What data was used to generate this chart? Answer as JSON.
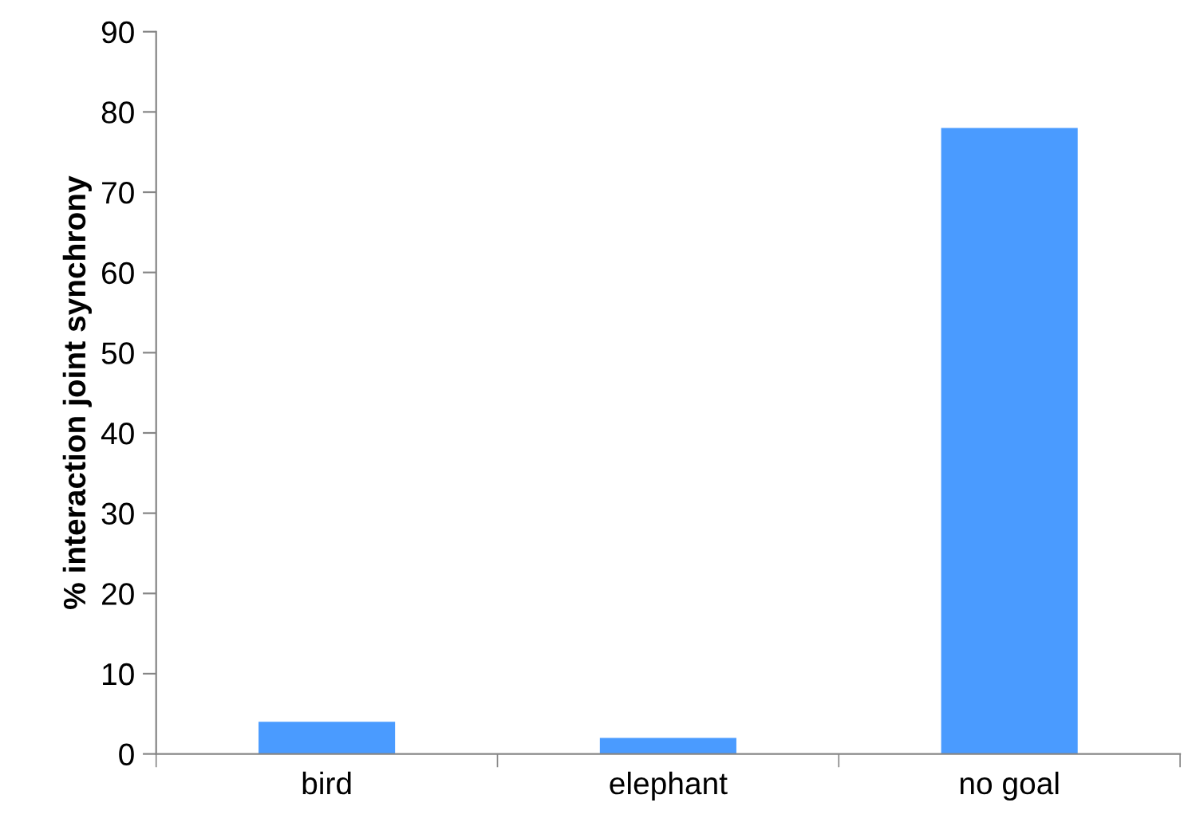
{
  "chart_data": {
    "type": "bar",
    "ylabel": "% interaction joint synchrony",
    "categories": [
      "bird",
      "elephant",
      "no goal"
    ],
    "values": [
      4,
      2,
      78
    ],
    "color": "#4a9bff",
    "ylim": [
      0,
      90
    ],
    "yticks": [
      0,
      10,
      20,
      30,
      40,
      50,
      60,
      70,
      80,
      90
    ],
    "grid": false,
    "legend": false
  }
}
